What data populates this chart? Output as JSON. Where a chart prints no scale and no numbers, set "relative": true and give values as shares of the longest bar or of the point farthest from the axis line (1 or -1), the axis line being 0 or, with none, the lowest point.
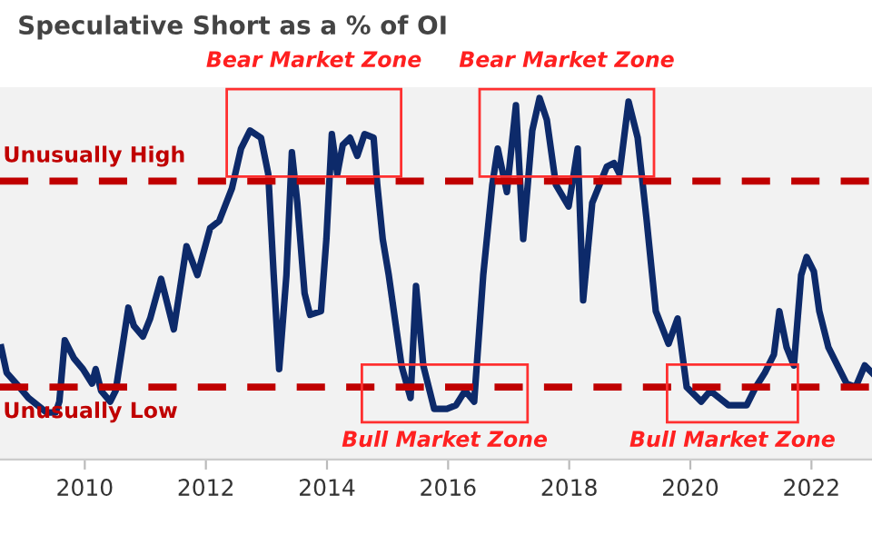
{
  "chart_data": {
    "type": "line",
    "title": "Speculative Short as a % of OI",
    "relative": true,
    "xlim": [
      2008.6,
      2023.0
    ],
    "xticks": [
      2010,
      2012,
      2014,
      2016,
      2018,
      2020,
      2022
    ],
    "tick_labels": "x",
    "grid": false,
    "marker": "none",
    "line_style": "solid",
    "series": [
      {
        "color": "#0d2a6a",
        "x": [
          2008.62,
          2008.71,
          2008.92,
          2009.07,
          2009.22,
          2009.37,
          2009.52,
          2009.58,
          2009.67,
          2009.82,
          2009.97,
          2010.12,
          2010.18,
          2010.27,
          2010.42,
          2010.51,
          2010.72,
          2010.81,
          2010.96,
          2011.08,
          2011.26,
          2011.47,
          2011.68,
          2011.86,
          2012.07,
          2012.22,
          2012.43,
          2012.58,
          2012.73,
          2012.91,
          2013.03,
          2013.12,
          2013.21,
          2013.33,
          2013.42,
          2013.51,
          2013.63,
          2013.72,
          2013.9,
          2013.99,
          2014.08,
          2014.17,
          2014.26,
          2014.38,
          2014.5,
          2014.62,
          2014.77,
          2014.83,
          2014.92,
          2015.02,
          2015.23,
          2015.38,
          2015.47,
          2015.59,
          2015.77,
          2015.98,
          2016.13,
          2016.28,
          2016.43,
          2016.58,
          2016.73,
          2016.82,
          2016.97,
          2017.12,
          2017.24,
          2017.39,
          2017.51,
          2017.63,
          2017.78,
          2017.99,
          2018.14,
          2018.23,
          2018.38,
          2018.62,
          2018.74,
          2018.83,
          2018.98,
          2019.13,
          2019.28,
          2019.37,
          2019.43,
          2019.64,
          2019.79,
          2019.94,
          2020.18,
          2020.33,
          2020.63,
          2020.93,
          2021.08,
          2021.23,
          2021.38,
          2021.47,
          2021.59,
          2021.71,
          2021.83,
          2021.92,
          2022.04,
          2022.13,
          2022.28,
          2022.43,
          2022.58,
          2022.73,
          2022.88,
          2023.0
        ],
        "values": [
          0.31,
          0.24,
          0.2,
          0.17,
          0.15,
          0.13,
          0.13,
          0.16,
          0.33,
          0.28,
          0.25,
          0.21,
          0.25,
          0.19,
          0.16,
          0.19,
          0.42,
          0.37,
          0.34,
          0.39,
          0.5,
          0.36,
          0.59,
          0.51,
          0.64,
          0.66,
          0.75,
          0.86,
          0.91,
          0.89,
          0.79,
          0.51,
          0.25,
          0.51,
          0.85,
          0.71,
          0.46,
          0.4,
          0.41,
          0.61,
          0.9,
          0.79,
          0.87,
          0.89,
          0.84,
          0.9,
          0.89,
          0.76,
          0.61,
          0.51,
          0.26,
          0.17,
          0.48,
          0.26,
          0.14,
          0.14,
          0.15,
          0.19,
          0.16,
          0.51,
          0.76,
          0.86,
          0.74,
          0.98,
          0.61,
          0.91,
          1.0,
          0.94,
          0.76,
          0.7,
          0.86,
          0.44,
          0.71,
          0.81,
          0.82,
          0.79,
          0.99,
          0.89,
          0.66,
          0.51,
          0.41,
          0.32,
          0.39,
          0.2,
          0.16,
          0.19,
          0.15,
          0.15,
          0.2,
          0.24,
          0.29,
          0.41,
          0.31,
          0.26,
          0.51,
          0.56,
          0.52,
          0.41,
          0.31,
          0.26,
          0.21,
          0.2,
          0.26,
          0.24
        ]
      }
    ],
    "ref_lines": [
      {
        "axis": "y",
        "value": 0.77,
        "label": "Unusually High",
        "color": "#c00000",
        "line_style": "dashed"
      },
      {
        "axis": "y",
        "value": 0.2,
        "label": "Unusually Low",
        "color": "#c00000",
        "line_style": "dashed"
      }
    ],
    "annotations": [
      "Bear Market Zone",
      "Bear Market Zone",
      "Bull Market Zone",
      "Bull Market Zone"
    ]
  }
}
